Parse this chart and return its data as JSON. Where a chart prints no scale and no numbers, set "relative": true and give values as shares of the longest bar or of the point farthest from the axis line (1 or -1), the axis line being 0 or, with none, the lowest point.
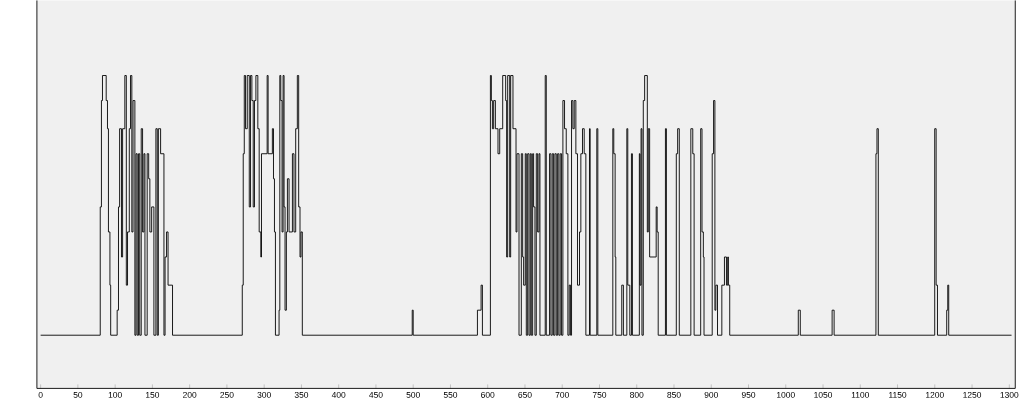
{
  "chart_data": {
    "type": "step",
    "relative": true,
    "color": "#000000",
    "x": [
      0,
      80,
      81.6,
      83,
      88,
      89.7,
      91,
      93,
      94,
      102.7,
      104.5,
      106,
      108.5,
      110,
      113,
      115,
      116.6,
      119,
      120.6,
      122.4,
      124,
      126.5,
      128,
      129.6,
      131.4,
      133,
      135,
      136.8,
      138.6,
      140,
      143,
      145,
      146.6,
      149,
      152,
      154.7,
      156.5,
      158,
      161,
      165.5,
      167,
      169,
      171,
      177,
      270.6,
      271.9,
      273.3,
      275,
      277.3,
      280,
      281.7,
      283.5,
      285.3,
      287,
      288.9,
      291.5,
      293.3,
      295.5,
      296.4,
      304,
      305.3,
      311,
      312.5,
      313.8,
      315.1,
      320,
      321,
      322.3,
      324,
      325.4,
      326.7,
      328,
      329.8,
      331.2,
      333.4,
      337.9,
      340,
      342.3,
      344.5,
      346.3,
      348.1,
      349.4,
      351.2,
      498.7,
      500,
      586.2,
      591.1,
      592.9,
      603.6,
      604.9,
      606.3,
      608,
      610.3,
      613.8,
      616.1,
      620.1,
      624.1,
      625.4,
      626.8,
      629.5,
      630.8,
      633.9,
      638,
      639.3,
      642,
      645.1,
      646.9,
      648.2,
      650.4,
      651.8,
      653.6,
      655.4,
      657.1,
      658.5,
      660.3,
      661.6,
      663.4,
      665.2,
      667,
      668.8,
      670.1,
      677.2,
      678.6,
      683,
      684.8,
      686.6,
      688.4,
      690.2,
      692,
      693.8,
      695.5,
      697.3,
      699.1,
      700.9,
      703.1,
      705.4,
      707.6,
      709.4,
      711.2,
      712.5,
      714.3,
      716.1,
      718.3,
      720.5,
      723.2,
      725,
      727.2,
      729.5,
      731.7,
      736.6,
      737.5,
      746.4,
      747.8,
      767.9,
      769.2,
      771,
      771.9,
      779.9,
      782.1,
      786.7,
      788,
      790.7,
      792.9,
      794.2,
      803.5,
      804.4,
      805.8,
      807,
      808.8,
      810.6,
      814.2,
      815.5,
      817.3,
      826.1,
      827.4,
      828.8,
      838.5,
      839.8,
      853.1,
      854.9,
      857.1,
      872.6,
      875.2,
      877,
      885.8,
      887.6,
      889.4,
      890.3,
      901.3,
      903.1,
      904.9,
      906.2,
      908.4,
      914.2,
      917.7,
      920.4,
      922.1,
      923,
      924.8,
      1016.8,
      1019.5,
      1062.2,
      1064.9,
      1121,
      1122.4,
      1124.2,
      1199.9,
      1201.8,
      1203.6,
      1216,
      1217.4,
      1218.7,
      1303
    ],
    "values": [
      0.17,
      0.58,
      0.92,
      1,
      0.92,
      0.83,
      0.5,
      0.33,
      0.17,
      0.25,
      0.58,
      0.83,
      0.42,
      0.83,
      1,
      0.33,
      0.5,
      0.83,
      1,
      0.5,
      0.92,
      0.17,
      0.75,
      0.17,
      0.75,
      0.17,
      0.83,
      0.5,
      0.75,
      0.17,
      0.75,
      0.67,
      0.5,
      0.58,
      0.17,
      0.83,
      0.17,
      0.83,
      0.75,
      0.17,
      0.42,
      0.5,
      0.33,
      0.17,
      0.33,
      0.75,
      1,
      0.83,
      1,
      0.58,
      1,
      0.92,
      0.58,
      0.92,
      1,
      0.83,
      0.5,
      0.42,
      0.75,
      1,
      0.75,
      0.83,
      0.67,
      0.5,
      0.17,
      0.25,
      1,
      0.92,
      0.5,
      1,
      0.58,
      0.25,
      0.5,
      0.67,
      0.5,
      0.75,
      0.5,
      0.83,
      1,
      0.58,
      0.42,
      0.5,
      0.17,
      0.25,
      0.17,
      0.25,
      0.33,
      0.17,
      1,
      0.92,
      0.83,
      0.92,
      0.83,
      0.75,
      0.83,
      1,
      0.92,
      0.42,
      1,
      0.42,
      1,
      0.83,
      0.5,
      0.75,
      0.17,
      0.75,
      0.42,
      0.33,
      0.75,
      0.17,
      0.75,
      0.17,
      0.75,
      0.17,
      0.75,
      0.58,
      0.17,
      0.75,
      0.5,
      0.75,
      0.17,
      1,
      0.17,
      0.75,
      0.17,
      0.75,
      0.17,
      0.75,
      0.17,
      0.75,
      0.17,
      0.75,
      0.17,
      0.92,
      0.83,
      0.75,
      0.17,
      0.33,
      0.17,
      0.92,
      0.83,
      0.92,
      0.75,
      0.33,
      0.5,
      0.75,
      0.83,
      0.75,
      0.17,
      0.83,
      0.17,
      0.83,
      0.17,
      0.83,
      0.75,
      0.42,
      0.17,
      0.33,
      0.17,
      0.83,
      0.33,
      0.17,
      0.75,
      0.17,
      0.75,
      0.33,
      0.83,
      0.17,
      0.92,
      1,
      0.5,
      0.83,
      0.42,
      0.58,
      0.5,
      0.17,
      0.83,
      0.17,
      0.75,
      0.83,
      0.17,
      0.83,
      0.75,
      0.17,
      0.83,
      0.5,
      0.42,
      0.17,
      0.75,
      0.92,
      0.25,
      0.33,
      0.17,
      0.33,
      0.42,
      0.33,
      0.42,
      0.33,
      0.17,
      0.25,
      0.17,
      0.25,
      0.17,
      0.75,
      0.83,
      0.17,
      0.83,
      0.33,
      0.17,
      0.25,
      0.33,
      0.17,
      0.17
    ],
    "xlim": [
      -5,
      1308
    ],
    "xticks": [
      0,
      50,
      100,
      150,
      200,
      250,
      300,
      350,
      400,
      450,
      500,
      550,
      600,
      650,
      700,
      750,
      800,
      850,
      900,
      950,
      1000,
      1050,
      1100,
      1150,
      1200,
      1250,
      1300
    ]
  }
}
